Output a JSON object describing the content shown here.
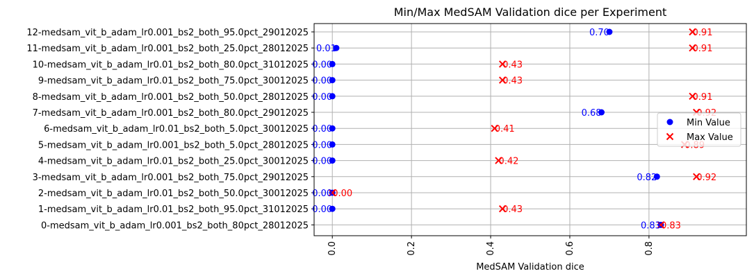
{
  "chart_data": {
    "type": "scatter",
    "title": "Min/Max MedSAM Validation dice per Experiment",
    "xlabel": "MedSAM Validation dice",
    "ylabel": "",
    "xlim": [
      -0.046,
      1.046
    ],
    "xticks": [
      0.0,
      0.2,
      0.4,
      0.6,
      0.8
    ],
    "x_tick_labels": [
      "0.0",
      "0.2",
      "0.4",
      "0.6",
      "0.8"
    ],
    "grid": true,
    "legend_position": "right",
    "categories": [
      "0-medsam_vit_b_adam_lr0.001_bs2_both_80pct_28012025",
      "1-medsam_vit_b_adam_lr0.01_bs2_both_95.0pct_31012025",
      "2-medsam_vit_b_adam_lr0.01_bs2_both_50.0pct_30012025",
      "3-medsam_vit_b_adam_lr0.001_bs2_both_75.0pct_29012025",
      "4-medsam_vit_b_adam_lr0.01_bs2_both_25.0pct_30012025",
      "5-medsam_vit_b_adam_lr0.001_bs2_both_5.0pct_28012025",
      "6-medsam_vit_b_adam_lr0.01_bs2_both_5.0pct_30012025",
      "7-medsam_vit_b_adam_lr0.001_bs2_both_80.0pct_29012025",
      "8-medsam_vit_b_adam_lr0.001_bs2_both_50.0pct_28012025",
      "9-medsam_vit_b_adam_lr0.01_bs2_both_75.0pct_30012025",
      "10-medsam_vit_b_adam_lr0.01_bs2_both_80.0pct_31012025",
      "11-medsam_vit_b_adam_lr0.001_bs2_both_25.0pct_28012025",
      "12-medsam_vit_b_adam_lr0.001_bs2_both_95.0pct_29012025"
    ],
    "series": [
      {
        "name": "Min Value",
        "marker": "circle",
        "color": "#0000ff",
        "values": [
          0.83,
          0.0,
          0.0,
          0.82,
          0.0,
          0.0,
          0.0,
          0.68,
          0.0,
          0.0,
          0.0,
          0.01,
          0.7
        ],
        "labels": [
          "0.83",
          "0.00",
          "0.00",
          "0.82",
          "0.00",
          "0.00",
          "0.00",
          "0.68",
          "0.00",
          "0.00",
          "0.00",
          "0.01",
          "0.70"
        ]
      },
      {
        "name": "Max Value",
        "marker": "x",
        "color": "#ff0000",
        "values": [
          0.83,
          0.43,
          0.0,
          0.92,
          0.42,
          0.89,
          0.41,
          0.92,
          0.91,
          0.43,
          0.43,
          0.91,
          0.91
        ],
        "labels": [
          "0.83",
          "0.43",
          "0.00",
          "0.92",
          "0.42",
          "0.89",
          "0.41",
          "0.92",
          "0.91",
          "0.43",
          "0.43",
          "0.91",
          "0.91"
        ]
      }
    ]
  }
}
